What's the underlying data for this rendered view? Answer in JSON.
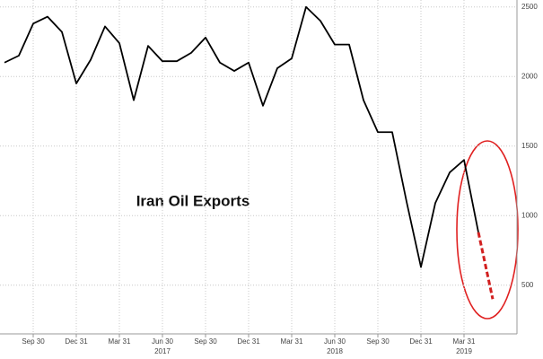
{
  "chart_data": {
    "type": "line",
    "annotation": "Iran Oil Exports",
    "categories": [
      null,
      null,
      "Sep 30",
      null,
      null,
      "Dec 31",
      null,
      null,
      "Mar 31",
      null,
      null,
      "Jun 30",
      null,
      null,
      "Sep 30",
      null,
      null,
      "Dec 31",
      null,
      null,
      "Mar 31",
      null,
      null,
      "Jun 30",
      null,
      null,
      "Sep 30",
      null,
      null,
      "Dec 31",
      null,
      null,
      "Mar 31",
      null,
      null
    ],
    "category_years": [
      null,
      null,
      null,
      null,
      null,
      null,
      null,
      null,
      null,
      null,
      null,
      "2017",
      null,
      null,
      null,
      null,
      null,
      null,
      null,
      null,
      null,
      null,
      null,
      "2018",
      null,
      null,
      null,
      null,
      null,
      null,
      null,
      null,
      "2019",
      null,
      null
    ],
    "series": [
      {
        "color": "#000000",
        "dashed": false,
        "values": [
          2100,
          2150,
          2380,
          2430,
          2320,
          1950,
          2120,
          2360,
          2240,
          1830,
          2220,
          2110,
          2110,
          2170,
          2280,
          2100,
          2040,
          2100,
          1790,
          2060,
          2130,
          2500,
          2400,
          2230,
          2230,
          1830,
          1600,
          1600,
          1100,
          630,
          1090,
          1310,
          1400,
          880,
          null
        ]
      },
      {
        "color": "#d22020",
        "dashed": true,
        "values": [
          null,
          null,
          null,
          null,
          null,
          null,
          null,
          null,
          null,
          null,
          null,
          null,
          null,
          null,
          null,
          null,
          null,
          null,
          null,
          null,
          null,
          null,
          null,
          null,
          null,
          null,
          null,
          null,
          null,
          null,
          null,
          null,
          null,
          880,
          400
        ]
      }
    ],
    "ylim": [
      150,
      2550
    ],
    "yticks": [
      500,
      1000,
      1500,
      2000,
      2500
    ],
    "grid": true
  }
}
